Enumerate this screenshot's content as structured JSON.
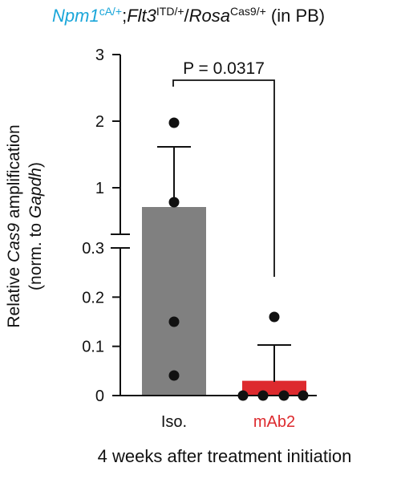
{
  "chart_data": {
    "type": "bar",
    "title": {
      "gene1": "Npm1",
      "gene1_sup": "cA/+",
      "sep1": ";",
      "gene2": "Flt3",
      "gene2_sup": "ITD/+",
      "sep2": "/",
      "gene3": "Rosa",
      "gene3_sup": "Cas9/+",
      "suffix": " (in PB)"
    },
    "ylabel": {
      "line1_pre": "Relative ",
      "line1_italic": "Cas9",
      "line1_post": " amplification",
      "line2_pre": "(norm. to ",
      "line2_italic": "Gapdh",
      "line2_post": ")"
    },
    "xlabel": "4 weeks after treatment initiation",
    "categories": [
      "Iso.",
      "mAb2"
    ],
    "y_axis": {
      "broken": true,
      "lower_segment": {
        "range": [
          0,
          0.3
        ],
        "ticks": [
          "0",
          "0.1",
          "0.2",
          "0.3"
        ]
      },
      "upper_segment": {
        "range": [
          0.3,
          3
        ],
        "ticks": [
          "1",
          "2",
          "3"
        ]
      }
    },
    "values": [
      0.72,
      0.03
    ],
    "error_upper": [
      1.6,
      0.1
    ],
    "points": [
      [
        1.95,
        0.75,
        0.15,
        0.04
      ],
      [
        0.16,
        0.0,
        0.0,
        0.0,
        0.0
      ]
    ],
    "annotation": {
      "p_label": "P = 0.0317"
    },
    "colors": {
      "bar1": "#808080",
      "bar2": "#dd2a2e",
      "title_accent": "#1aa6d9",
      "category2_label": "#dd2a2e",
      "points": "#111111"
    }
  }
}
